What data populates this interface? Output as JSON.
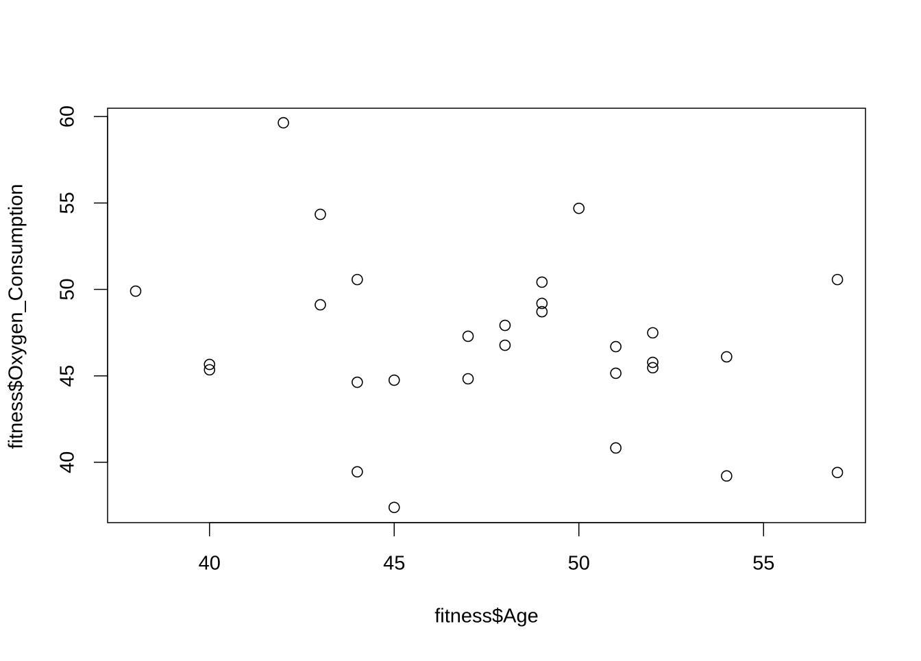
{
  "chart_data": {
    "type": "scatter",
    "x_label": "fitness$Age",
    "y_label": "fitness$Oxygen_Consumption",
    "x": [
      38,
      40,
      40,
      42,
      43,
      43,
      44,
      44,
      44,
      45,
      45,
      47,
      47,
      48,
      48,
      49,
      49,
      49,
      50,
      51,
      51,
      51,
      52,
      52,
      52,
      54,
      54,
      57,
      57
    ],
    "values": [
      49.9,
      45.66,
      45.35,
      59.64,
      54.34,
      49.11,
      50.57,
      44.63,
      39.45,
      44.75,
      37.39,
      47.29,
      44.83,
      47.92,
      46.77,
      50.42,
      49.19,
      48.71,
      54.69,
      46.69,
      45.15,
      40.83,
      47.49,
      45.78,
      45.47,
      46.1,
      39.21,
      50.57,
      39.41
    ],
    "color": "#000000",
    "xlim": [
      37.24,
      57.76
    ],
    "ylim": [
      36.51,
      60.48
    ],
    "xticks": [
      40,
      45,
      50,
      55
    ],
    "yticks": [
      40,
      45,
      50,
      55,
      60
    ],
    "grid": false
  }
}
